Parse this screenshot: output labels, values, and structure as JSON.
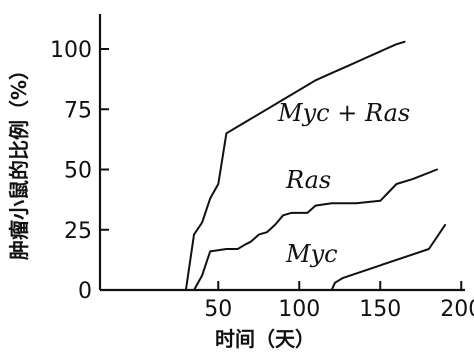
{
  "chart_data": {
    "type": "line",
    "xlabel": "时间（天）",
    "ylabel": "肿瘤小鼠的比例（%）",
    "xlim": [
      -23,
      227
    ],
    "ylim": [
      0,
      118
    ],
    "x_ticks": [
      50,
      100,
      150,
      200
    ],
    "x_tick_labels": [
      "50",
      "100",
      "150",
      "200"
    ],
    "y_ticks": [
      0,
      25,
      50,
      75,
      100
    ],
    "y_tick_labels": [
      "0",
      "25",
      "50",
      "75",
      "100"
    ],
    "grid": false,
    "legend": "none",
    "series": [
      {
        "name": "Myc + Ras",
        "x": [
          30,
          35,
          40,
          45,
          50,
          55,
          60,
          70,
          80,
          90,
          100,
          110,
          120,
          130,
          140,
          150,
          160,
          165
        ],
        "y": [
          0,
          23,
          28,
          38,
          44,
          65,
          67,
          71,
          75,
          79,
          83,
          87,
          90,
          93,
          96,
          99,
          102,
          103
        ]
      },
      {
        "name": "Ras",
        "x": [
          35,
          40,
          43,
          45,
          55,
          62,
          67,
          70,
          75,
          80,
          85,
          90,
          95,
          105,
          110,
          120,
          135,
          150,
          160,
          170,
          185
        ],
        "y": [
          0,
          6,
          12,
          16,
          17,
          17,
          19,
          20,
          23,
          24,
          27,
          31,
          32,
          32,
          35,
          36,
          36,
          37,
          44,
          46,
          50
        ]
      },
      {
        "name": "Myc",
        "x": [
          120,
          122,
          127,
          180,
          190
        ],
        "y": [
          0,
          3,
          5,
          17,
          27
        ]
      }
    ]
  }
}
